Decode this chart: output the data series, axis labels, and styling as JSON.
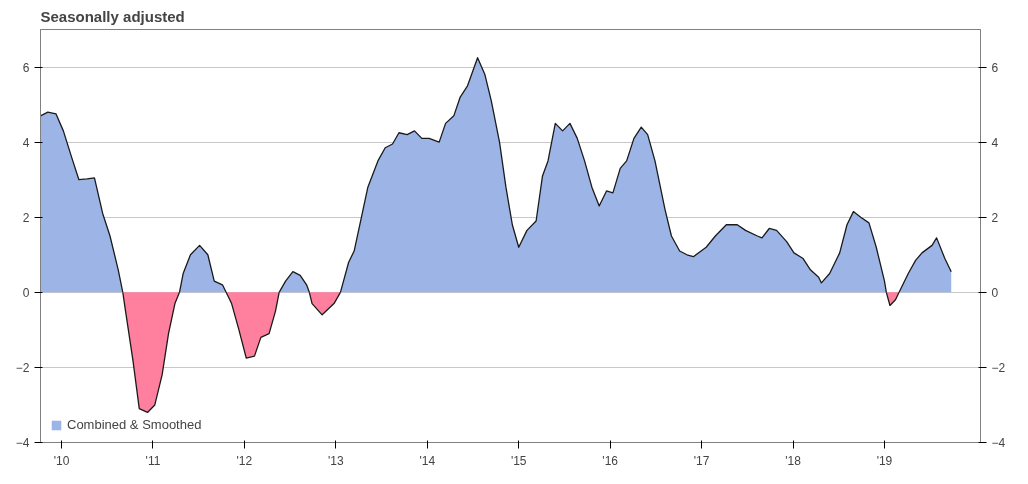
{
  "chart_data": {
    "type": "area",
    "title": "Seasonally adjusted",
    "x": [
      2009.77,
      2009.85,
      2009.94,
      2010.02,
      2010.11,
      2010.19,
      2010.28,
      2010.36,
      2010.45,
      2010.53,
      2010.62,
      2010.67,
      2010.7,
      2010.78,
      2010.85,
      2010.94,
      2011.02,
      2011.1,
      2011.17,
      2011.24,
      2011.29,
      2011.33,
      2011.41,
      2011.51,
      2011.6,
      2011.67,
      2011.76,
      2011.8,
      2011.86,
      2011.94,
      2012.02,
      2012.11,
      2012.18,
      2012.27,
      2012.34,
      2012.38,
      2012.45,
      2012.53,
      2012.61,
      2012.68,
      2012.71,
      2012.74,
      2012.85,
      2012.98,
      2013.05,
      2013.14,
      2013.2,
      2013.28,
      2013.35,
      2013.46,
      2013.54,
      2013.62,
      2013.69,
      2013.78,
      2013.86,
      2013.94,
      2014.02,
      2014.13,
      2014.2,
      2014.29,
      2014.36,
      2014.44,
      2014.55,
      2014.63,
      2014.7,
      2014.79,
      2014.86,
      2014.93,
      2015.0,
      2015.09,
      2015.19,
      2015.26,
      2015.32,
      2015.4,
      2015.48,
      2015.56,
      2015.64,
      2015.72,
      2015.8,
      2015.88,
      2015.96,
      2016.03,
      2016.11,
      2016.18,
      2016.26,
      2016.34,
      2016.41,
      2016.49,
      2016.6,
      2016.67,
      2016.76,
      2016.84,
      2016.91,
      2017.05,
      2017.15,
      2017.27,
      2017.39,
      2017.48,
      2017.61,
      2017.66,
      2017.74,
      2017.82,
      2017.93,
      2018.01,
      2018.11,
      2018.19,
      2018.28,
      2018.31,
      2018.4,
      2018.51,
      2018.59,
      2018.66,
      2018.74,
      2018.83,
      2018.91,
      2018.98,
      2019.0,
      2019.02,
      2019.06,
      2019.12,
      2019.16,
      2019.26,
      2019.34,
      2019.41,
      2019.52,
      2019.57,
      2019.66,
      2019.73
    ],
    "series": [
      {
        "name": "Combined & Smoothed",
        "color": "#9db5e6",
        "values": [
          4.7,
          4.8,
          4.75,
          4.3,
          3.6,
          3.0,
          3.02,
          3.05,
          2.1,
          1.5,
          0.6,
          0,
          null,
          null,
          null,
          null,
          null,
          null,
          null,
          null,
          0,
          0.5,
          1.0,
          1.25,
          1.0,
          0.3,
          0.2,
          0,
          null,
          null,
          null,
          null,
          null,
          null,
          null,
          0,
          0.3,
          0.55,
          0.45,
          0.2,
          0,
          null,
          null,
          null,
          0,
          0.8,
          1.1,
          2.0,
          2.8,
          3.5,
          3.85,
          3.95,
          4.25,
          4.2,
          4.3,
          4.1,
          4.1,
          4.0,
          4.5,
          4.7,
          5.2,
          5.5,
          6.25,
          5.8,
          5.1,
          4.0,
          2.8,
          1.8,
          1.2,
          1.65,
          1.9,
          3.1,
          3.5,
          4.5,
          4.3,
          4.5,
          4.1,
          3.5,
          2.8,
          2.3,
          2.7,
          2.65,
          3.3,
          3.5,
          4.1,
          4.4,
          4.2,
          3.5,
          2.2,
          1.5,
          1.1,
          1.0,
          0.95,
          1.2,
          1.5,
          1.8,
          1.8,
          1.65,
          1.5,
          1.45,
          1.7,
          1.65,
          1.35,
          1.05,
          0.9,
          0.6,
          0.4,
          0.25,
          0.5,
          1.05,
          1.8,
          2.15,
          2.0,
          1.85,
          1.2,
          0.5,
          0.3,
          0,
          null,
          null,
          0,
          0.5,
          0.85,
          1.05,
          1.25,
          1.45,
          0.9,
          0.55
        ]
      },
      {
        "color": "#ff7f9f",
        "values": [
          null,
          null,
          null,
          null,
          null,
          null,
          null,
          null,
          null,
          null,
          null,
          0,
          -0.5,
          -1.8,
          -3.1,
          -3.2,
          -3.0,
          -2.2,
          -1.1,
          -0.3,
          0,
          null,
          null,
          null,
          null,
          null,
          null,
          0,
          -0.3,
          -1.0,
          -1.75,
          -1.7,
          -1.2,
          -1.1,
          -0.5,
          0,
          null,
          null,
          null,
          null,
          0,
          -0.3,
          -0.6,
          -0.3,
          0,
          null,
          null,
          null,
          null,
          null,
          null,
          null,
          null,
          null,
          null,
          null,
          null,
          null,
          null,
          null,
          null,
          null,
          null,
          null,
          null,
          null,
          null,
          null,
          null,
          null,
          null,
          null,
          null,
          null,
          null,
          null,
          null,
          null,
          null,
          null,
          null,
          null,
          null,
          null,
          null,
          null,
          null,
          null,
          null,
          null,
          null,
          null,
          null,
          null,
          null,
          null,
          null,
          null,
          null,
          null,
          null,
          null,
          null,
          null,
          null,
          null,
          null,
          null,
          null,
          null,
          null,
          null,
          null,
          null,
          null,
          null,
          null,
          0,
          -0.35,
          -0.2,
          0,
          null,
          null,
          null,
          null,
          null,
          null,
          null
        ]
      }
    ],
    "xlim": [
      2009.77,
      2020.05
    ],
    "xticks": [
      {
        "value": 2010,
        "label": "'10"
      },
      {
        "value": 2011,
        "label": "'11"
      },
      {
        "value": 2012,
        "label": "'12"
      },
      {
        "value": 2013,
        "label": "'13"
      },
      {
        "value": 2014,
        "label": "'14"
      },
      {
        "value": 2015,
        "label": "'15"
      },
      {
        "value": 2016,
        "label": "'16"
      },
      {
        "value": 2017,
        "label": "'17"
      },
      {
        "value": 2018,
        "label": "'18"
      },
      {
        "value": 2019,
        "label": "'19"
      }
    ],
    "ylim": [
      -4,
      7
    ],
    "yticks": [
      -4,
      -2,
      0,
      2,
      4,
      6
    ],
    "y2lim": [
      -4,
      7
    ],
    "y2ticks": [
      -4,
      -2,
      0,
      2,
      4,
      6
    ],
    "grid": "y",
    "legend": "bottom left"
  }
}
